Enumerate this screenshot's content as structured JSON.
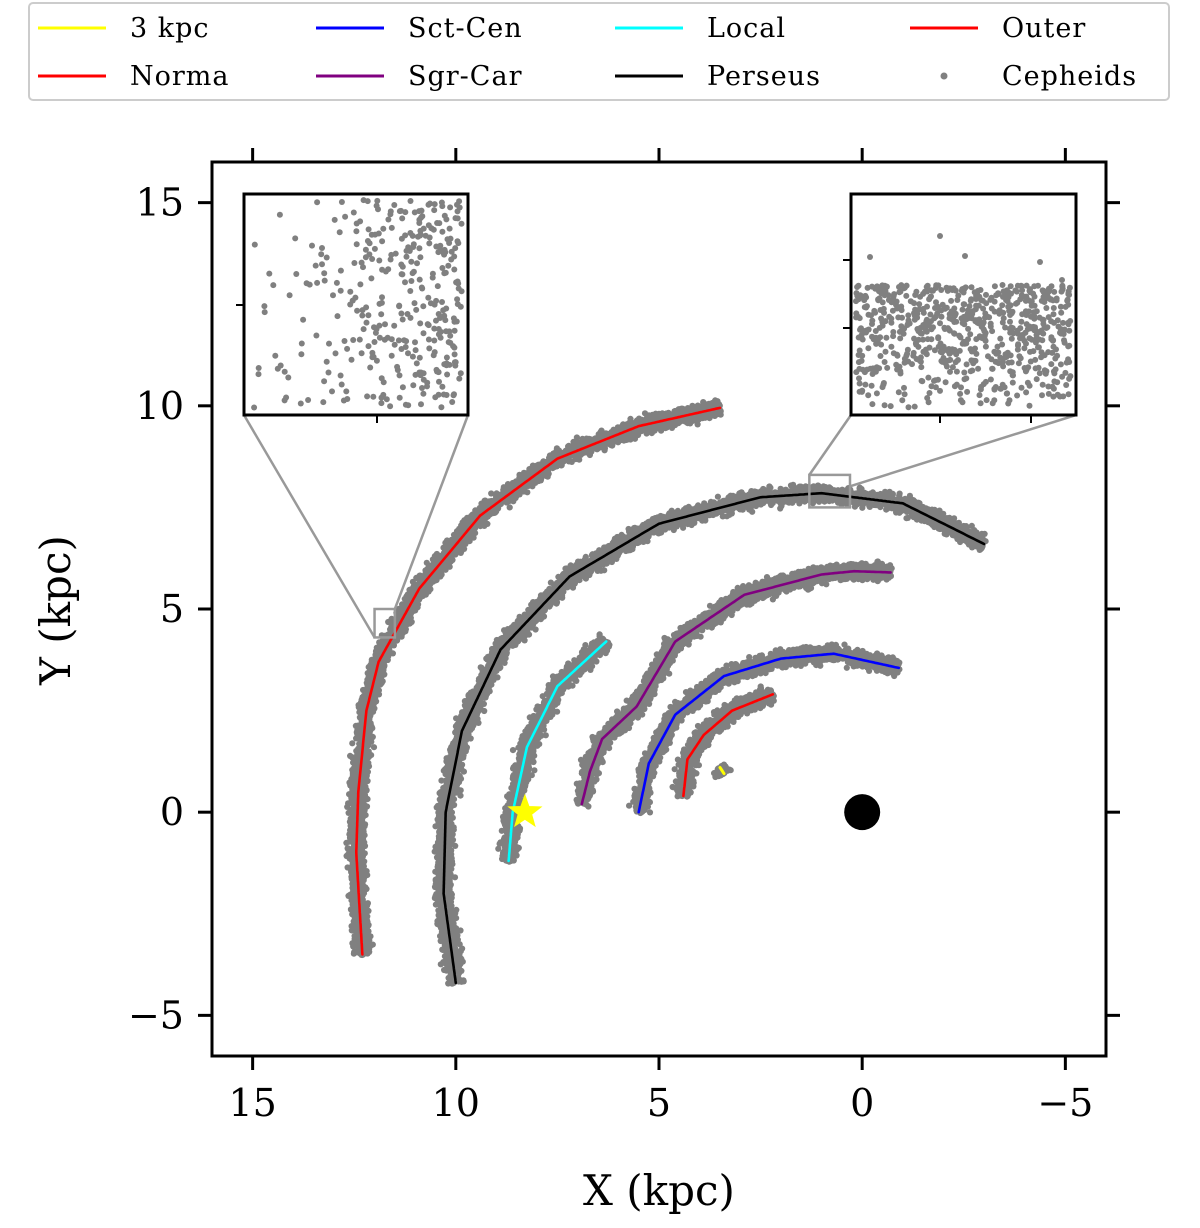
{
  "chart_data": {
    "type": "scatter",
    "title": "",
    "xlabel": "X (kpc)",
    "ylabel": "Y (kpc)",
    "xlim": [
      16,
      -6
    ],
    "ylim": [
      -6,
      16
    ],
    "x_ticks": [
      15,
      10,
      5,
      0,
      -5
    ],
    "x_tick_labels": [
      "15",
      "10",
      "5",
      "0",
      "−5"
    ],
    "y_ticks": [
      15,
      10,
      5,
      0,
      -5
    ],
    "y_tick_labels": [
      "15",
      "10",
      "5",
      "0",
      "−5"
    ],
    "grid": false,
    "legend": [
      {
        "name": "3 kpc",
        "color": "#ffff00",
        "marker": "line"
      },
      {
        "name": "Sct-Cen",
        "color": "#0000ff",
        "marker": "line"
      },
      {
        "name": "Local",
        "color": "#00ffff",
        "marker": "line"
      },
      {
        "name": "Outer",
        "color": "#ff0000",
        "marker": "line"
      },
      {
        "name": "Norma",
        "color": "#ff0000",
        "marker": "line"
      },
      {
        "name": "Sgr-Car",
        "color": "#800080",
        "marker": "line"
      },
      {
        "name": "Perseus",
        "color": "#000000",
        "marker": "line"
      },
      {
        "name": "Cepheids",
        "color": "#808080",
        "marker": "dot"
      }
    ],
    "arms": [
      {
        "name": "3 kpc",
        "color": "#ffff00",
        "points": [
          [
            3.5,
            1.1
          ],
          [
            3.4,
            0.95
          ]
        ]
      },
      {
        "name": "Norma",
        "color": "#ff0000",
        "points": [
          [
            4.4,
            0.4
          ],
          [
            4.3,
            1.3
          ],
          [
            3.9,
            1.9
          ],
          [
            3.2,
            2.5
          ],
          [
            2.2,
            2.9
          ]
        ]
      },
      {
        "name": "Sct-Cen",
        "color": "#0000ff",
        "points": [
          [
            5.5,
            0.0
          ],
          [
            5.25,
            1.2
          ],
          [
            4.6,
            2.4
          ],
          [
            3.4,
            3.35
          ],
          [
            2.0,
            3.78
          ],
          [
            0.7,
            3.9
          ],
          [
            -0.9,
            3.55
          ]
        ]
      },
      {
        "name": "Sgr-Car",
        "color": "#800080",
        "points": [
          [
            6.9,
            0.2
          ],
          [
            6.7,
            1.0
          ],
          [
            6.4,
            1.8
          ],
          [
            5.55,
            2.6
          ],
          [
            4.6,
            4.2
          ],
          [
            2.9,
            5.35
          ],
          [
            1.0,
            5.85
          ],
          [
            0.2,
            5.93
          ],
          [
            -0.7,
            5.9
          ]
        ]
      },
      {
        "name": "Local",
        "color": "#00ffff",
        "points": [
          [
            8.7,
            -1.2
          ],
          [
            8.6,
            0.0
          ],
          [
            8.25,
            1.6
          ],
          [
            7.5,
            3.1
          ],
          [
            6.3,
            4.2
          ]
        ]
      },
      {
        "name": "Perseus",
        "color": "#000000",
        "points": [
          [
            10.0,
            -4.2
          ],
          [
            10.3,
            -2.0
          ],
          [
            10.25,
            0.0
          ],
          [
            9.85,
            2.0
          ],
          [
            8.9,
            4.0
          ],
          [
            7.2,
            5.8
          ],
          [
            5.0,
            7.1
          ],
          [
            2.5,
            7.75
          ],
          [
            1.0,
            7.85
          ],
          [
            -1.0,
            7.6
          ],
          [
            -3.0,
            6.6
          ]
        ]
      },
      {
        "name": "Outer",
        "color": "#ff0000",
        "points": [
          [
            12.3,
            -3.5
          ],
          [
            12.45,
            -1.0
          ],
          [
            12.4,
            0.5
          ],
          [
            12.2,
            2.5
          ],
          [
            11.9,
            3.7
          ],
          [
            10.9,
            5.5
          ],
          [
            9.4,
            7.3
          ],
          [
            7.5,
            8.7
          ],
          [
            5.5,
            9.5
          ],
          [
            3.5,
            9.95
          ]
        ]
      }
    ],
    "cepheids": {
      "name": "Cepheids",
      "color": "#808080",
      "scatter_width_kpc": 0.4
    },
    "sun_marker": {
      "x": 8.3,
      "y": 0.0,
      "color": "#ffff00",
      "shape": "star"
    },
    "galactic_center": {
      "x": 0.0,
      "y": 0.0,
      "color": "#000000",
      "shape": "circle"
    },
    "zoom_regions": [
      {
        "name": "outer-arm-zoom",
        "x_range": [
          12.0,
          11.5
        ],
        "y_range": [
          4.3,
          5.0
        ]
      },
      {
        "name": "perseus-zoom",
        "x_range": [
          1.3,
          0.3
        ],
        "y_range": [
          7.5,
          8.3
        ]
      }
    ]
  }
}
